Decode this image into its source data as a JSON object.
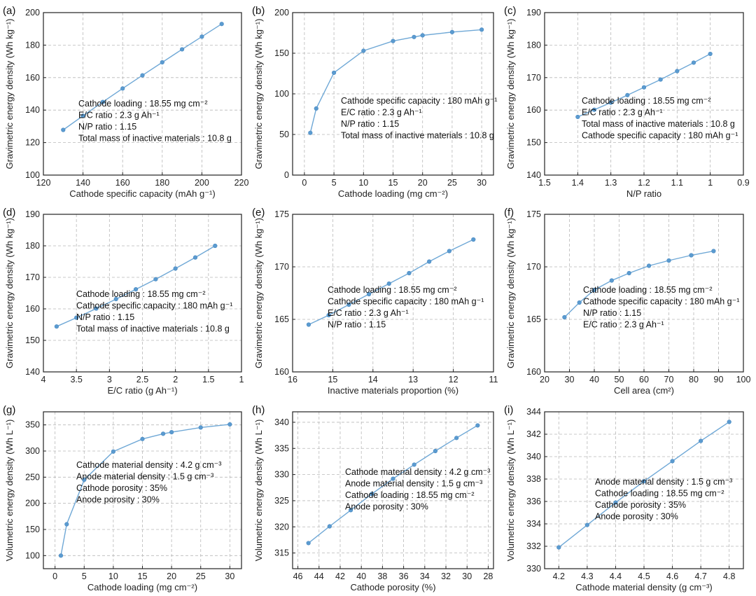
{
  "panels": [
    {
      "label": "(a)",
      "chart_data": {
        "type": "line",
        "xlabel": "Cathode specific capacity (mAh g⁻¹)",
        "ylabel": "Gravimetric energy density (Wh kg⁻¹)",
        "xlim": [
          120,
          220
        ],
        "ylim": [
          100,
          200
        ],
        "xticks": [
          120,
          140,
          160,
          180,
          200,
          220
        ],
        "yticks": [
          100,
          120,
          140,
          160,
          180,
          200
        ],
        "x": [
          130,
          140,
          150,
          160,
          170,
          180,
          190,
          200,
          210
        ],
        "y": [
          127.8,
          136.5,
          145,
          153.3,
          161.4,
          169.4,
          177.4,
          185.2,
          193
        ],
        "annotations": [
          "Cathode loading : 18.55 mg cm⁻²",
          "E/C ratio : 2.3 g Ah⁻¹",
          "N/P ratio : 1.15",
          "Total mass of inactive materials : 10.8 g"
        ]
      }
    },
    {
      "label": "(b)",
      "chart_data": {
        "type": "line",
        "xlabel": "Cathode loading (mg cm⁻²)",
        "ylabel": "Gravimetric energy density (Wh kg⁻¹)",
        "xlim": [
          -2,
          32
        ],
        "ylim": [
          0,
          200
        ],
        "xticks": [
          0,
          5,
          10,
          15,
          20,
          25,
          30
        ],
        "yticks": [
          0,
          50,
          100,
          150,
          200
        ],
        "x": [
          1,
          2,
          5,
          10,
          15,
          18.55,
          20,
          25,
          30
        ],
        "y": [
          52,
          82,
          126,
          153,
          165,
          170,
          172,
          176,
          179
        ],
        "annotations": [
          "Cathode specific capacity : 180 mAh g⁻¹",
          "E/C ratio : 2.3 g Ah⁻¹",
          "N/P ratio : 1.15",
          "Total mass of inactive materials : 10.8 g"
        ]
      }
    },
    {
      "label": "(c)",
      "chart_data": {
        "type": "line",
        "xlabel": "N/P ratio",
        "ylabel": "Gravimetric energy density (Wh kg⁻¹)",
        "xlim": [
          1.5,
          0.9
        ],
        "ylim": [
          140,
          190
        ],
        "xticks": [
          1.5,
          1.4,
          1.3,
          1.2,
          1.1,
          1.0,
          0.9
        ],
        "yticks": [
          140,
          150,
          160,
          170,
          180,
          190
        ],
        "x": [
          1.4,
          1.35,
          1.3,
          1.25,
          1.2,
          1.15,
          1.1,
          1.05,
          1.0
        ],
        "y": [
          157.9,
          160.1,
          162.3,
          164.6,
          167,
          169.4,
          172,
          174.6,
          177.3
        ],
        "annotations": [
          "Cathode loading : 18.55 mg cm⁻²",
          "E/C ratio : 2.3 g Ah⁻¹",
          "Total mass of inactive materials : 10.8 g",
          "Cathode specific capacity : 180 mAh g⁻¹"
        ]
      }
    },
    {
      "label": "(d)",
      "chart_data": {
        "type": "line",
        "xlabel": "E/C ratio (g Ah⁻¹)",
        "ylabel": "Gravimetric energy density (Wh kg⁻¹)",
        "xlim": [
          4.0,
          1.0
        ],
        "ylim": [
          140,
          190
        ],
        "xticks": [
          4.0,
          3.5,
          3.0,
          2.5,
          2.0,
          1.5,
          1.0
        ],
        "yticks": [
          140,
          150,
          160,
          170,
          180,
          190
        ],
        "x": [
          3.8,
          3.5,
          3.2,
          2.9,
          2.6,
          2.3,
          2.0,
          1.7,
          1.4
        ],
        "y": [
          154.4,
          157.2,
          160.1,
          163.1,
          166.2,
          169.4,
          172.8,
          176.3,
          180
        ],
        "annotations": [
          "Cathode loading : 18.55 mg cm⁻²",
          "Cathode specific capacity : 180 mAh g⁻¹",
          "N/P ratio : 1.15",
          "Total mass of inactive materials : 10.8 g"
        ]
      }
    },
    {
      "label": "(e)",
      "chart_data": {
        "type": "line",
        "xlabel": "Inactive materials proportion (%)",
        "ylabel": "Gravimetric energy density (Wh kg⁻¹)",
        "xlim": [
          16,
          11
        ],
        "ylim": [
          160,
          175
        ],
        "xticks": [
          16,
          15,
          14,
          13,
          12,
          11
        ],
        "yticks": [
          160,
          165,
          170,
          175
        ],
        "x": [
          15.6,
          15.1,
          14.6,
          14.1,
          13.6,
          13.1,
          12.6,
          12.1,
          11.5
        ],
        "y": [
          164.5,
          165.4,
          166.4,
          167.4,
          168.4,
          169.4,
          170.5,
          171.5,
          172.6
        ],
        "annotations": [
          "Cathode loading : 18.55 mg cm⁻²",
          "Cathode specific capacity : 180 mAh g⁻¹",
          "E/C ratio : 2.3 g Ah⁻¹",
          "N/P ratio : 1.15"
        ]
      }
    },
    {
      "label": "(f)",
      "chart_data": {
        "type": "line",
        "xlabel": "Cell area (cm²)",
        "ylabel": "Gravimetric energy density (Wh kg⁻¹)",
        "xlim": [
          20,
          100
        ],
        "ylim": [
          160,
          175
        ],
        "xticks": [
          20,
          30,
          40,
          50,
          60,
          70,
          80,
          90,
          100
        ],
        "yticks": [
          160,
          165,
          170,
          175
        ],
        "x": [
          28,
          34,
          40,
          47,
          54,
          62,
          70,
          79,
          88
        ],
        "y": [
          165.2,
          166.6,
          167.8,
          168.7,
          169.4,
          170.1,
          170.6,
          171.1,
          171.5
        ],
        "annotations": [
          "Cathode loading : 18.55 mg cm⁻²",
          "Cathode specific capacity : 180 mAh g⁻¹",
          "N/P ratio : 1.15",
          "E/C ratio : 2.3 g Ah⁻¹"
        ]
      }
    },
    {
      "label": "(g)",
      "chart_data": {
        "type": "line",
        "xlabel": "Cathode loading (mg cm⁻²)",
        "ylabel": "Volumetric energy density (Wh L⁻¹)",
        "xlim": [
          -2,
          32
        ],
        "ylim": [
          75,
          375
        ],
        "xticks": [
          0,
          5,
          10,
          15,
          20,
          25,
          30
        ],
        "yticks": [
          100,
          150,
          200,
          250,
          300,
          350
        ],
        "x": [
          1,
          2,
          5,
          10,
          15,
          18.55,
          20,
          25,
          30
        ],
        "y": [
          100,
          160,
          245,
          299,
          323,
          333,
          336,
          345,
          351
        ],
        "annotations": [
          "Cathode material density : 4.2 g cm⁻³",
          "Anode material density : 1.5 g cm⁻³",
          "Cathode porosity : 35%",
          "Anode porosity : 30%"
        ]
      }
    },
    {
      "label": "(h)",
      "chart_data": {
        "type": "line",
        "xlabel": "Cathode porosity (%)",
        "ylabel": "Volumetric energy density (Wh L⁻¹)",
        "xlim": [
          46.5,
          27.5
        ],
        "ylim": [
          312,
          342
        ],
        "xticks": [
          46,
          44,
          42,
          40,
          38,
          36,
          34,
          32,
          30,
          28
        ],
        "yticks": [
          315,
          320,
          325,
          330,
          335,
          340
        ],
        "x": [
          45,
          43,
          41,
          39,
          37,
          35,
          33,
          31,
          29
        ],
        "y": [
          316.9,
          320.1,
          323.2,
          326.3,
          329.2,
          331.9,
          334.5,
          337,
          339.4
        ],
        "annotations": [
          "Cathode material density : 4.2 g cm⁻³",
          "Anode material density : 1.5 g cm⁻³",
          "Cathode loading : 18.55 mg cm⁻²",
          "Anode porosity : 30%"
        ]
      }
    },
    {
      "label": "(i)",
      "chart_data": {
        "type": "line",
        "xlabel": "Cathode material density (g cm⁻³)",
        "ylabel": "Volumetric energy density (Wh L⁻¹)",
        "xlim": [
          4.15,
          4.85
        ],
        "ylim": [
          330,
          344
        ],
        "xticks": [
          4.2,
          4.3,
          4.4,
          4.5,
          4.6,
          4.7,
          4.8
        ],
        "yticks": [
          330,
          332,
          334,
          336,
          338,
          340,
          342,
          344
        ],
        "x": [
          4.2,
          4.3,
          4.4,
          4.5,
          4.6,
          4.7,
          4.8
        ],
        "y": [
          331.9,
          333.9,
          335.9,
          337.8,
          339.6,
          341.4,
          343.1
        ],
        "annotations": [
          "Anode material density : 1.5 g cm⁻³",
          "Cathode loading : 18.55 mg cm⁻²",
          "Cathode porosity : 35%",
          "Anode porosity : 30%"
        ]
      }
    }
  ],
  "colors": {
    "line": "#6fa8d6",
    "marker": "#5b9bd0",
    "grid": "#b8b8b8",
    "axis": "#222222"
  }
}
